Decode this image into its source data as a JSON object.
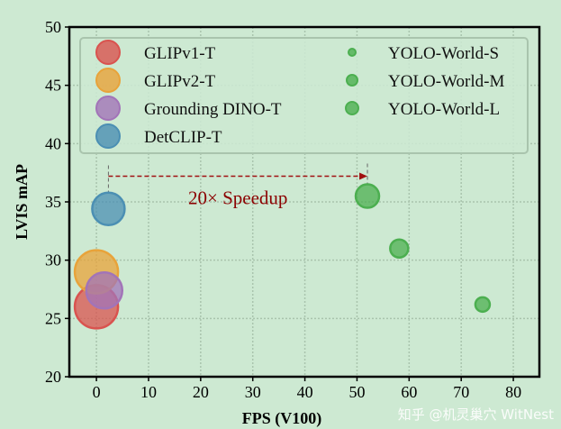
{
  "chart_data": {
    "type": "scatter",
    "title": "",
    "xlabel": "FPS (V100)",
    "ylabel": "LVIS mAP",
    "xlim": [
      -5.2,
      85
    ],
    "ylim": [
      20,
      50
    ],
    "xticks": [
      0,
      10,
      20,
      30,
      40,
      50,
      60,
      70,
      80
    ],
    "yticks": [
      20,
      25,
      30,
      35,
      40,
      45,
      50
    ],
    "grid": true,
    "legend_placement": "top",
    "series": [
      {
        "name": "GLIPv1-T",
        "x": 0,
        "y": 26.0,
        "size": 24,
        "color": "#d9534f"
      },
      {
        "name": "GLIPv2-T",
        "x": 0,
        "y": 29.0,
        "size": 24,
        "color": "#e8a33a"
      },
      {
        "name": "Grounding DINO-T",
        "x": 1.5,
        "y": 27.4,
        "size": 20,
        "color": "#a274b8"
      },
      {
        "name": "DetCLIP-T",
        "x": 2.3,
        "y": 34.4,
        "size": 18,
        "color": "#4b8fb3"
      },
      {
        "name": "YOLO-World-S",
        "x": 74.1,
        "y": 26.2,
        "size": 8,
        "color": "#4caf50"
      },
      {
        "name": "YOLO-World-M",
        "x": 58.1,
        "y": 31.0,
        "size": 10,
        "color": "#4caf50"
      },
      {
        "name": "YOLO-World-L",
        "x": 52.0,
        "y": 35.5,
        "size": 13,
        "color": "#4caf50"
      }
    ],
    "annotation": {
      "text": "20× Speedup",
      "from_x": 2.3,
      "to_x": 52.0,
      "y": 37.2,
      "color": "#8b0000"
    }
  },
  "watermark": "知乎 @机灵巢穴 WitNest"
}
